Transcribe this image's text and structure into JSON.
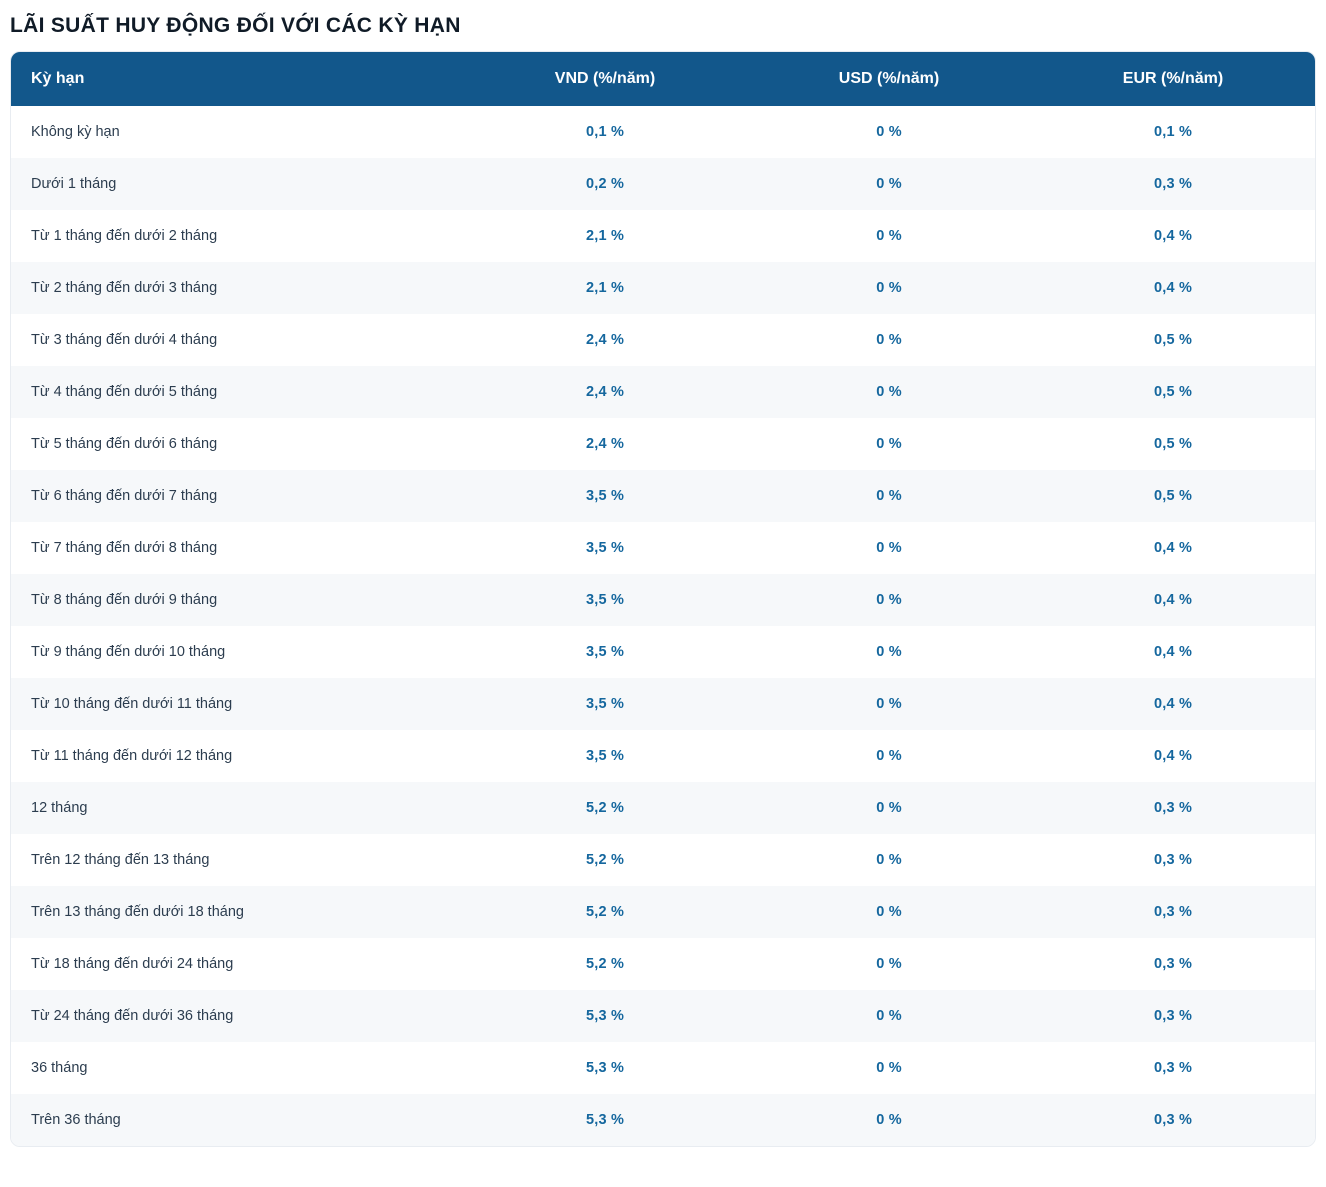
{
  "page_title": "LÃI SUẤT HUY ĐỘNG ĐỐI VỚI CÁC KỲ HẠN",
  "colors": {
    "header_bg": "#12578b",
    "header_text": "#ffffff",
    "value_text": "#15679e",
    "label_text": "#2c3d4f",
    "alt_row_bg": "#f6f8fa",
    "card_border": "#e8ecf1",
    "title_text": "#101b27"
  },
  "table": {
    "columns": {
      "term": "Kỳ hạn",
      "vnd": "VND (%/năm)",
      "usd": "USD (%/năm)",
      "eur": "EUR (%/năm)"
    },
    "rows": [
      {
        "term": "Không kỳ hạn",
        "vnd": "0,1 %",
        "usd": "0 %",
        "eur": "0,1 %"
      },
      {
        "term": "Dưới 1 tháng",
        "vnd": "0,2 %",
        "usd": "0 %",
        "eur": "0,3 %"
      },
      {
        "term": "Từ 1 tháng đến dưới 2 tháng",
        "vnd": "2,1 %",
        "usd": "0 %",
        "eur": "0,4 %"
      },
      {
        "term": "Từ 2 tháng đến dưới 3 tháng",
        "vnd": "2,1 %",
        "usd": "0 %",
        "eur": "0,4 %"
      },
      {
        "term": "Từ 3 tháng đến dưới 4 tháng",
        "vnd": "2,4 %",
        "usd": "0 %",
        "eur": "0,5 %"
      },
      {
        "term": "Từ 4 tháng đến dưới 5 tháng",
        "vnd": "2,4 %",
        "usd": "0 %",
        "eur": "0,5 %"
      },
      {
        "term": "Từ 5 tháng đến dưới 6 tháng",
        "vnd": "2,4 %",
        "usd": "0 %",
        "eur": "0,5 %"
      },
      {
        "term": "Từ 6 tháng đến dưới 7 tháng",
        "vnd": "3,5 %",
        "usd": "0 %",
        "eur": "0,5 %"
      },
      {
        "term": "Từ 7 tháng đến dưới 8 tháng",
        "vnd": "3,5 %",
        "usd": "0 %",
        "eur": "0,4 %"
      },
      {
        "term": "Từ 8 tháng đến dưới 9 tháng",
        "vnd": "3,5 %",
        "usd": "0 %",
        "eur": "0,4 %"
      },
      {
        "term": "Từ 9 tháng đến dưới 10 tháng",
        "vnd": "3,5 %",
        "usd": "0 %",
        "eur": "0,4 %"
      },
      {
        "term": "Từ 10 tháng đến dưới 11 tháng",
        "vnd": "3,5 %",
        "usd": "0 %",
        "eur": "0,4 %"
      },
      {
        "term": "Từ 11 tháng đến dưới 12 tháng",
        "vnd": "3,5 %",
        "usd": "0 %",
        "eur": "0,4 %"
      },
      {
        "term": "12 tháng",
        "vnd": "5,2 %",
        "usd": "0 %",
        "eur": "0,3 %"
      },
      {
        "term": "Trên 12 tháng đến 13 tháng",
        "vnd": "5,2 %",
        "usd": "0 %",
        "eur": "0,3 %"
      },
      {
        "term": "Trên 13 tháng đến dưới 18 tháng",
        "vnd": "5,2 %",
        "usd": "0 %",
        "eur": "0,3 %"
      },
      {
        "term": "Từ 18 tháng đến dưới 24 tháng",
        "vnd": "5,2 %",
        "usd": "0 %",
        "eur": "0,3 %"
      },
      {
        "term": "Từ 24 tháng đến dưới 36 tháng",
        "vnd": "5,3 %",
        "usd": "0 %",
        "eur": "0,3 %"
      },
      {
        "term": "36 tháng",
        "vnd": "5,3 %",
        "usd": "0 %",
        "eur": "0,3 %"
      },
      {
        "term": "Trên 36 tháng",
        "vnd": "5,3 %",
        "usd": "0 %",
        "eur": "0,3 %"
      }
    ]
  }
}
